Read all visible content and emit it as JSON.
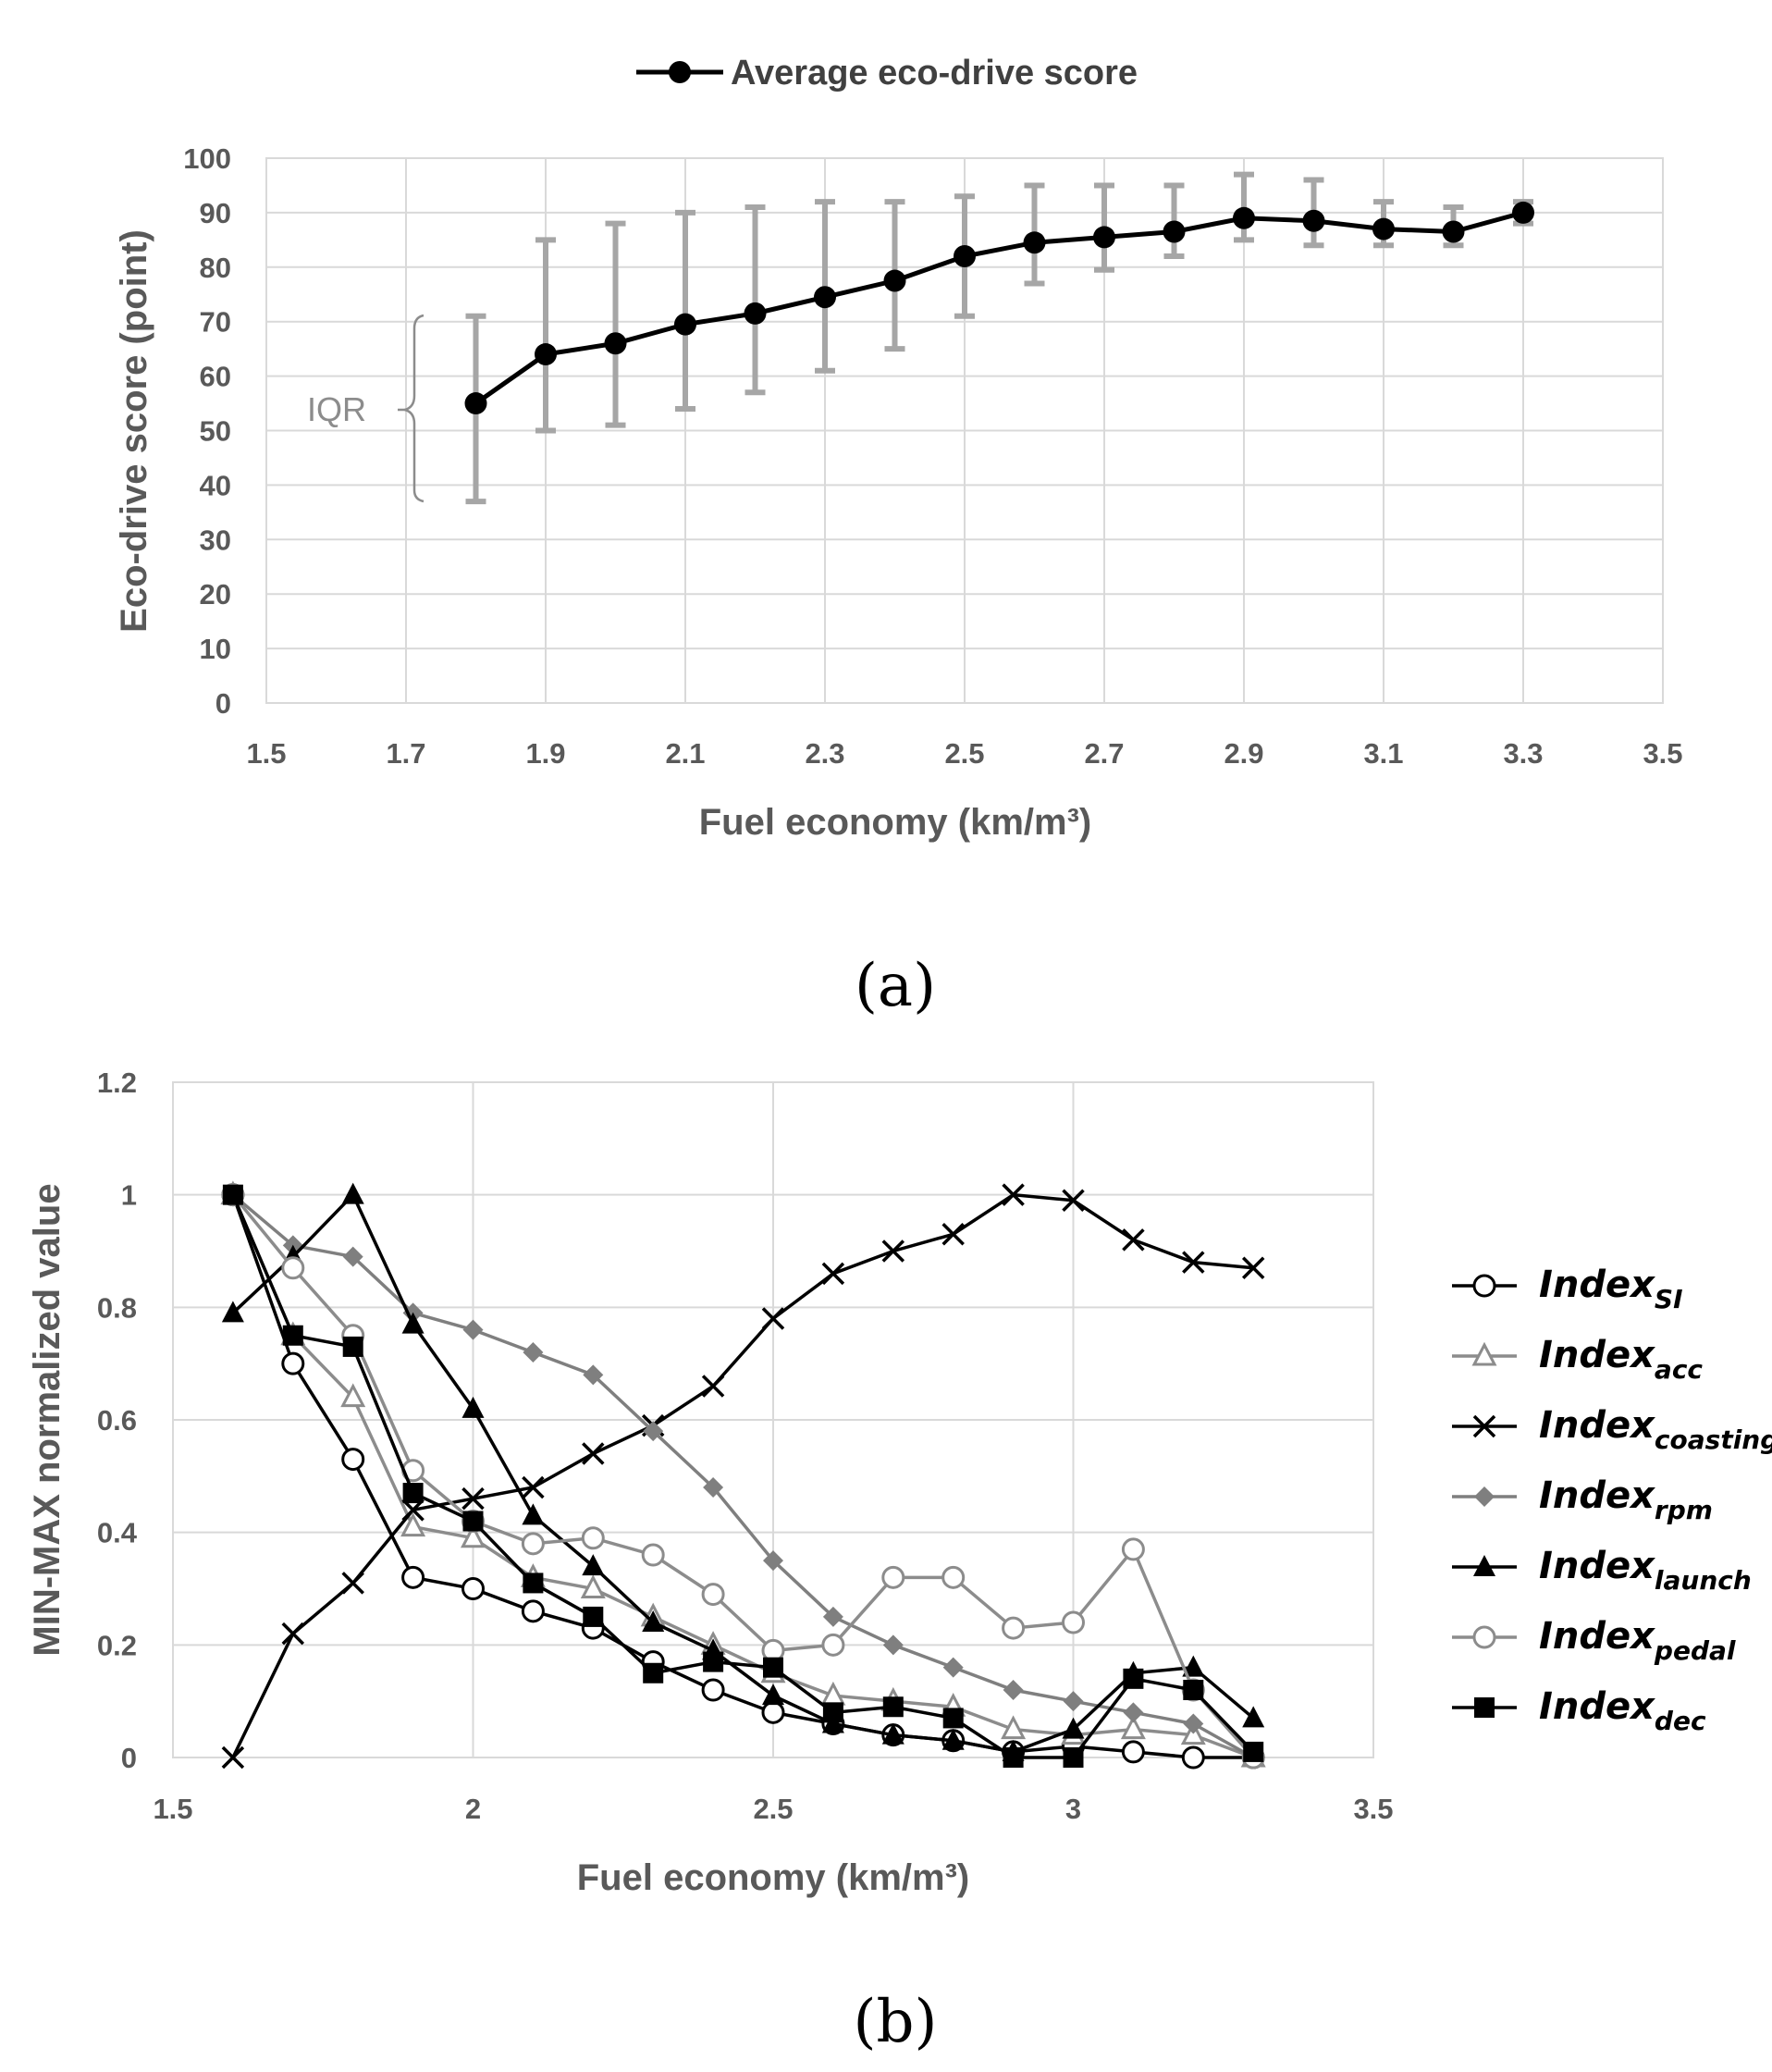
{
  "chart_data": [
    {
      "type": "line",
      "panel_label": "(a)",
      "legend": [
        "Average eco-drive score"
      ],
      "legend_position": "top-center",
      "xlabel": "Fuel economy (km/m³)",
      "ylabel": "Eco-drive score (point)",
      "xlim": [
        1.5,
        3.5
      ],
      "ylim": [
        0,
        100
      ],
      "x_ticks": [
        "1.5",
        "1.7",
        "1.9",
        "2.1",
        "2.3",
        "2.5",
        "2.7",
        "2.9",
        "3.1",
        "3.3",
        "3.5"
      ],
      "y_ticks": [
        "0",
        "10",
        "20",
        "30",
        "40",
        "50",
        "60",
        "70",
        "80",
        "90",
        "100"
      ],
      "grid": true,
      "annotation": "IQR",
      "series": [
        {
          "name": "Average eco-drive score",
          "color": "#000000",
          "error_color": "#a6a6a6",
          "x": [
            1.8,
            1.9,
            2.0,
            2.1,
            2.2,
            2.3,
            2.4,
            2.5,
            2.6,
            2.7,
            2.8,
            2.9,
            3.0,
            3.1,
            3.2,
            3.3
          ],
          "values": [
            55,
            64,
            66,
            69.5,
            71.5,
            74.5,
            77.5,
            82,
            84.5,
            85.5,
            86.5,
            89,
            88.5,
            87,
            86.5,
            90
          ],
          "error_low": [
            37,
            50,
            51,
            54,
            57,
            61,
            65,
            71,
            77,
            79.5,
            82,
            85,
            84,
            84,
            84,
            88
          ],
          "error_high": [
            71,
            85,
            88,
            90,
            91,
            92,
            92,
            93,
            95,
            95,
            95,
            97,
            96,
            92,
            91,
            92
          ]
        }
      ]
    },
    {
      "type": "line",
      "panel_label": "(b)",
      "xlabel": "Fuel economy (km/m³)",
      "ylabel": "MIN-MAX normalized value",
      "xlim": [
        1.5,
        3.5
      ],
      "ylim": [
        0,
        1.2
      ],
      "x_ticks": [
        "1.5",
        "2",
        "2.5",
        "3",
        "3.5"
      ],
      "y_ticks": [
        "0",
        "0.2",
        "0.4",
        "0.6",
        "0.8",
        "1",
        "1.2"
      ],
      "grid": true,
      "legend_position": "right",
      "x": [
        1.6,
        1.7,
        1.8,
        1.9,
        2.0,
        2.1,
        2.2,
        2.3,
        2.4,
        2.5,
        2.6,
        2.7,
        2.8,
        2.9,
        3.0,
        3.1,
        3.2,
        3.3
      ],
      "series": [
        {
          "name": "Index",
          "sub": "SI",
          "marker": "circle-open",
          "color": "#000000",
          "values": [
            1.0,
            0.7,
            0.53,
            0.32,
            0.3,
            0.26,
            0.23,
            0.17,
            0.12,
            0.08,
            0.06,
            0.04,
            0.03,
            0.01,
            0.02,
            0.01,
            0.0,
            0.0
          ]
        },
        {
          "name": "Index",
          "sub": "acc",
          "marker": "triangle-open",
          "color": "#8c8c8c",
          "values": [
            1.0,
            0.75,
            0.64,
            0.41,
            0.39,
            0.32,
            0.3,
            0.25,
            0.2,
            0.15,
            0.11,
            0.1,
            0.09,
            0.05,
            0.04,
            0.05,
            0.04,
            0.0
          ]
        },
        {
          "name": "Index",
          "sub": "coasting",
          "marker": "x",
          "color": "#000000",
          "values": [
            0.0,
            0.22,
            0.31,
            0.44,
            0.46,
            0.48,
            0.54,
            0.59,
            0.66,
            0.78,
            0.86,
            0.9,
            0.93,
            1.0,
            0.99,
            0.92,
            0.88,
            0.87
          ]
        },
        {
          "name": "Index",
          "sub": "rpm",
          "marker": "diamond",
          "color": "#7f7f7f",
          "values": [
            1.0,
            0.91,
            0.89,
            0.79,
            0.76,
            0.72,
            0.68,
            0.58,
            0.48,
            0.35,
            0.25,
            0.2,
            0.16,
            0.12,
            0.1,
            0.08,
            0.06,
            0.0
          ]
        },
        {
          "name": "Index",
          "sub": "launch",
          "marker": "triangle",
          "color": "#000000",
          "values": [
            0.79,
            0.89,
            1.0,
            0.77,
            0.62,
            0.43,
            0.34,
            0.24,
            0.19,
            0.11,
            0.06,
            0.04,
            0.03,
            0.01,
            0.05,
            0.15,
            0.16,
            0.07
          ]
        },
        {
          "name": "Index",
          "sub": "pedal",
          "marker": "circle-open",
          "color": "#8c8c8c",
          "values": [
            1.0,
            0.87,
            0.75,
            0.51,
            0.42,
            0.38,
            0.39,
            0.36,
            0.29,
            0.19,
            0.2,
            0.32,
            0.32,
            0.23,
            0.24,
            0.37,
            0.12,
            0.0
          ]
        },
        {
          "name": "Index",
          "sub": "dec",
          "marker": "square",
          "color": "#000000",
          "values": [
            1.0,
            0.75,
            0.73,
            0.47,
            0.42,
            0.31,
            0.25,
            0.15,
            0.17,
            0.16,
            0.08,
            0.09,
            0.07,
            0.0,
            0.0,
            0.14,
            0.12,
            0.01
          ]
        }
      ]
    }
  ]
}
